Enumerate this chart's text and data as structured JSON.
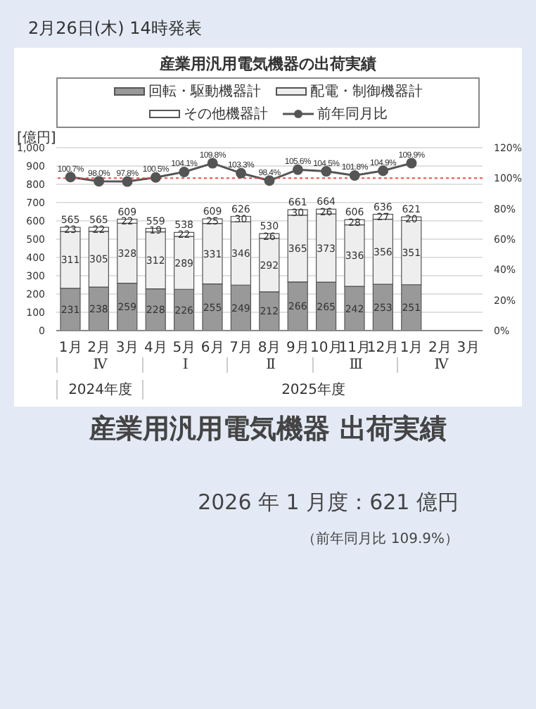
{
  "chart_data": {
    "type": "bar",
    "title": "産業用汎用電気機器の出荷実績",
    "ylabel": "[億円]",
    "categories": [
      "1月",
      "2月",
      "3月",
      "4月",
      "5月",
      "6月",
      "7月",
      "8月",
      "9月",
      "10月",
      "11月",
      "12月",
      "1月",
      "2月",
      "3月"
    ],
    "stacked": true,
    "series": [
      {
        "name": "回転・駆動機器計",
        "color": "#999999",
        "values": [
          231,
          238,
          259,
          228,
          226,
          255,
          249,
          212,
          266,
          265,
          242,
          253,
          251,
          null,
          null
        ]
      },
      {
        "name": "配電・制御機器計",
        "color": "#eeeeee",
        "values": [
          311,
          305,
          328,
          312,
          289,
          331,
          346,
          292,
          365,
          373,
          336,
          356,
          351,
          null,
          null
        ]
      },
      {
        "name": "その他機器計",
        "color": "#ffffff",
        "values": [
          23,
          22,
          22,
          19,
          22,
          25,
          30,
          26,
          30,
          26,
          28,
          27,
          20,
          null,
          null
        ]
      },
      {
        "name": "前年同月比",
        "type": "line",
        "axis": "y2",
        "color": "#555555",
        "marker": "circle",
        "values": [
          100.7,
          98.0,
          97.8,
          100.5,
          104.1,
          109.8,
          103.3,
          98.4,
          105.6,
          104.5,
          101.8,
          104.9,
          109.9,
          null,
          null
        ],
        "value_labels": [
          "100.7%",
          "98.0%",
          "97.8%",
          "100.5%",
          "104.1%",
          "109.8%",
          "103.3%",
          "98.4%",
          "105.6%",
          "104.5%",
          "101.8%",
          "104.9%",
          "109.9%",
          null,
          null
        ]
      }
    ],
    "data_labels": true,
    "totals": [
      "565",
      "565",
      "609",
      "559",
      "538",
      "609",
      "626",
      "530",
      "661",
      "664",
      "606",
      "636",
      "621",
      null,
      null
    ],
    "ylim": [
      0,
      1000
    ],
    "yticks": [
      0,
      100,
      200,
      300,
      400,
      500,
      600,
      700,
      800,
      900,
      {
        "value": 1000,
        "label": "1,000"
      }
    ],
    "y2lim": [
      0,
      120
    ],
    "y2ticks": [
      {
        "value": 0,
        "label": "0%"
      },
      {
        "value": 20,
        "label": "20%"
      },
      {
        "value": 40,
        "label": "40%"
      },
      {
        "value": 60,
        "label": "60%"
      },
      {
        "value": 80,
        "label": "80%"
      },
      {
        "value": 100,
        "label": "100%"
      },
      {
        "value": 120,
        "label": "120%"
      }
    ],
    "ref_lines": [
      {
        "axis": "y2",
        "value": 100,
        "color": "#ff4444",
        "line_style": "dotted"
      }
    ],
    "grid": "y",
    "legend": "top",
    "annotations": [
      "Ⅳ",
      "Ⅰ",
      "Ⅱ",
      "Ⅲ",
      "Ⅳ",
      "2024年度",
      "2025年度",
      "2月26日(木) 14時発表",
      "産業用汎用電気機器 出荷実績",
      "2026 年 1 月度：621 億円",
      "（前年同月比 109.9%）"
    ]
  }
}
